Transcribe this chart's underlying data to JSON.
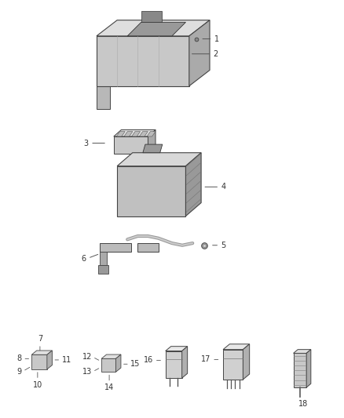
{
  "background_color": "#ffffff",
  "fig_width": 4.38,
  "fig_height": 5.33,
  "dpi": 100,
  "line_color": "#555555",
  "text_color": "#333333",
  "label_fontsize": 7
}
